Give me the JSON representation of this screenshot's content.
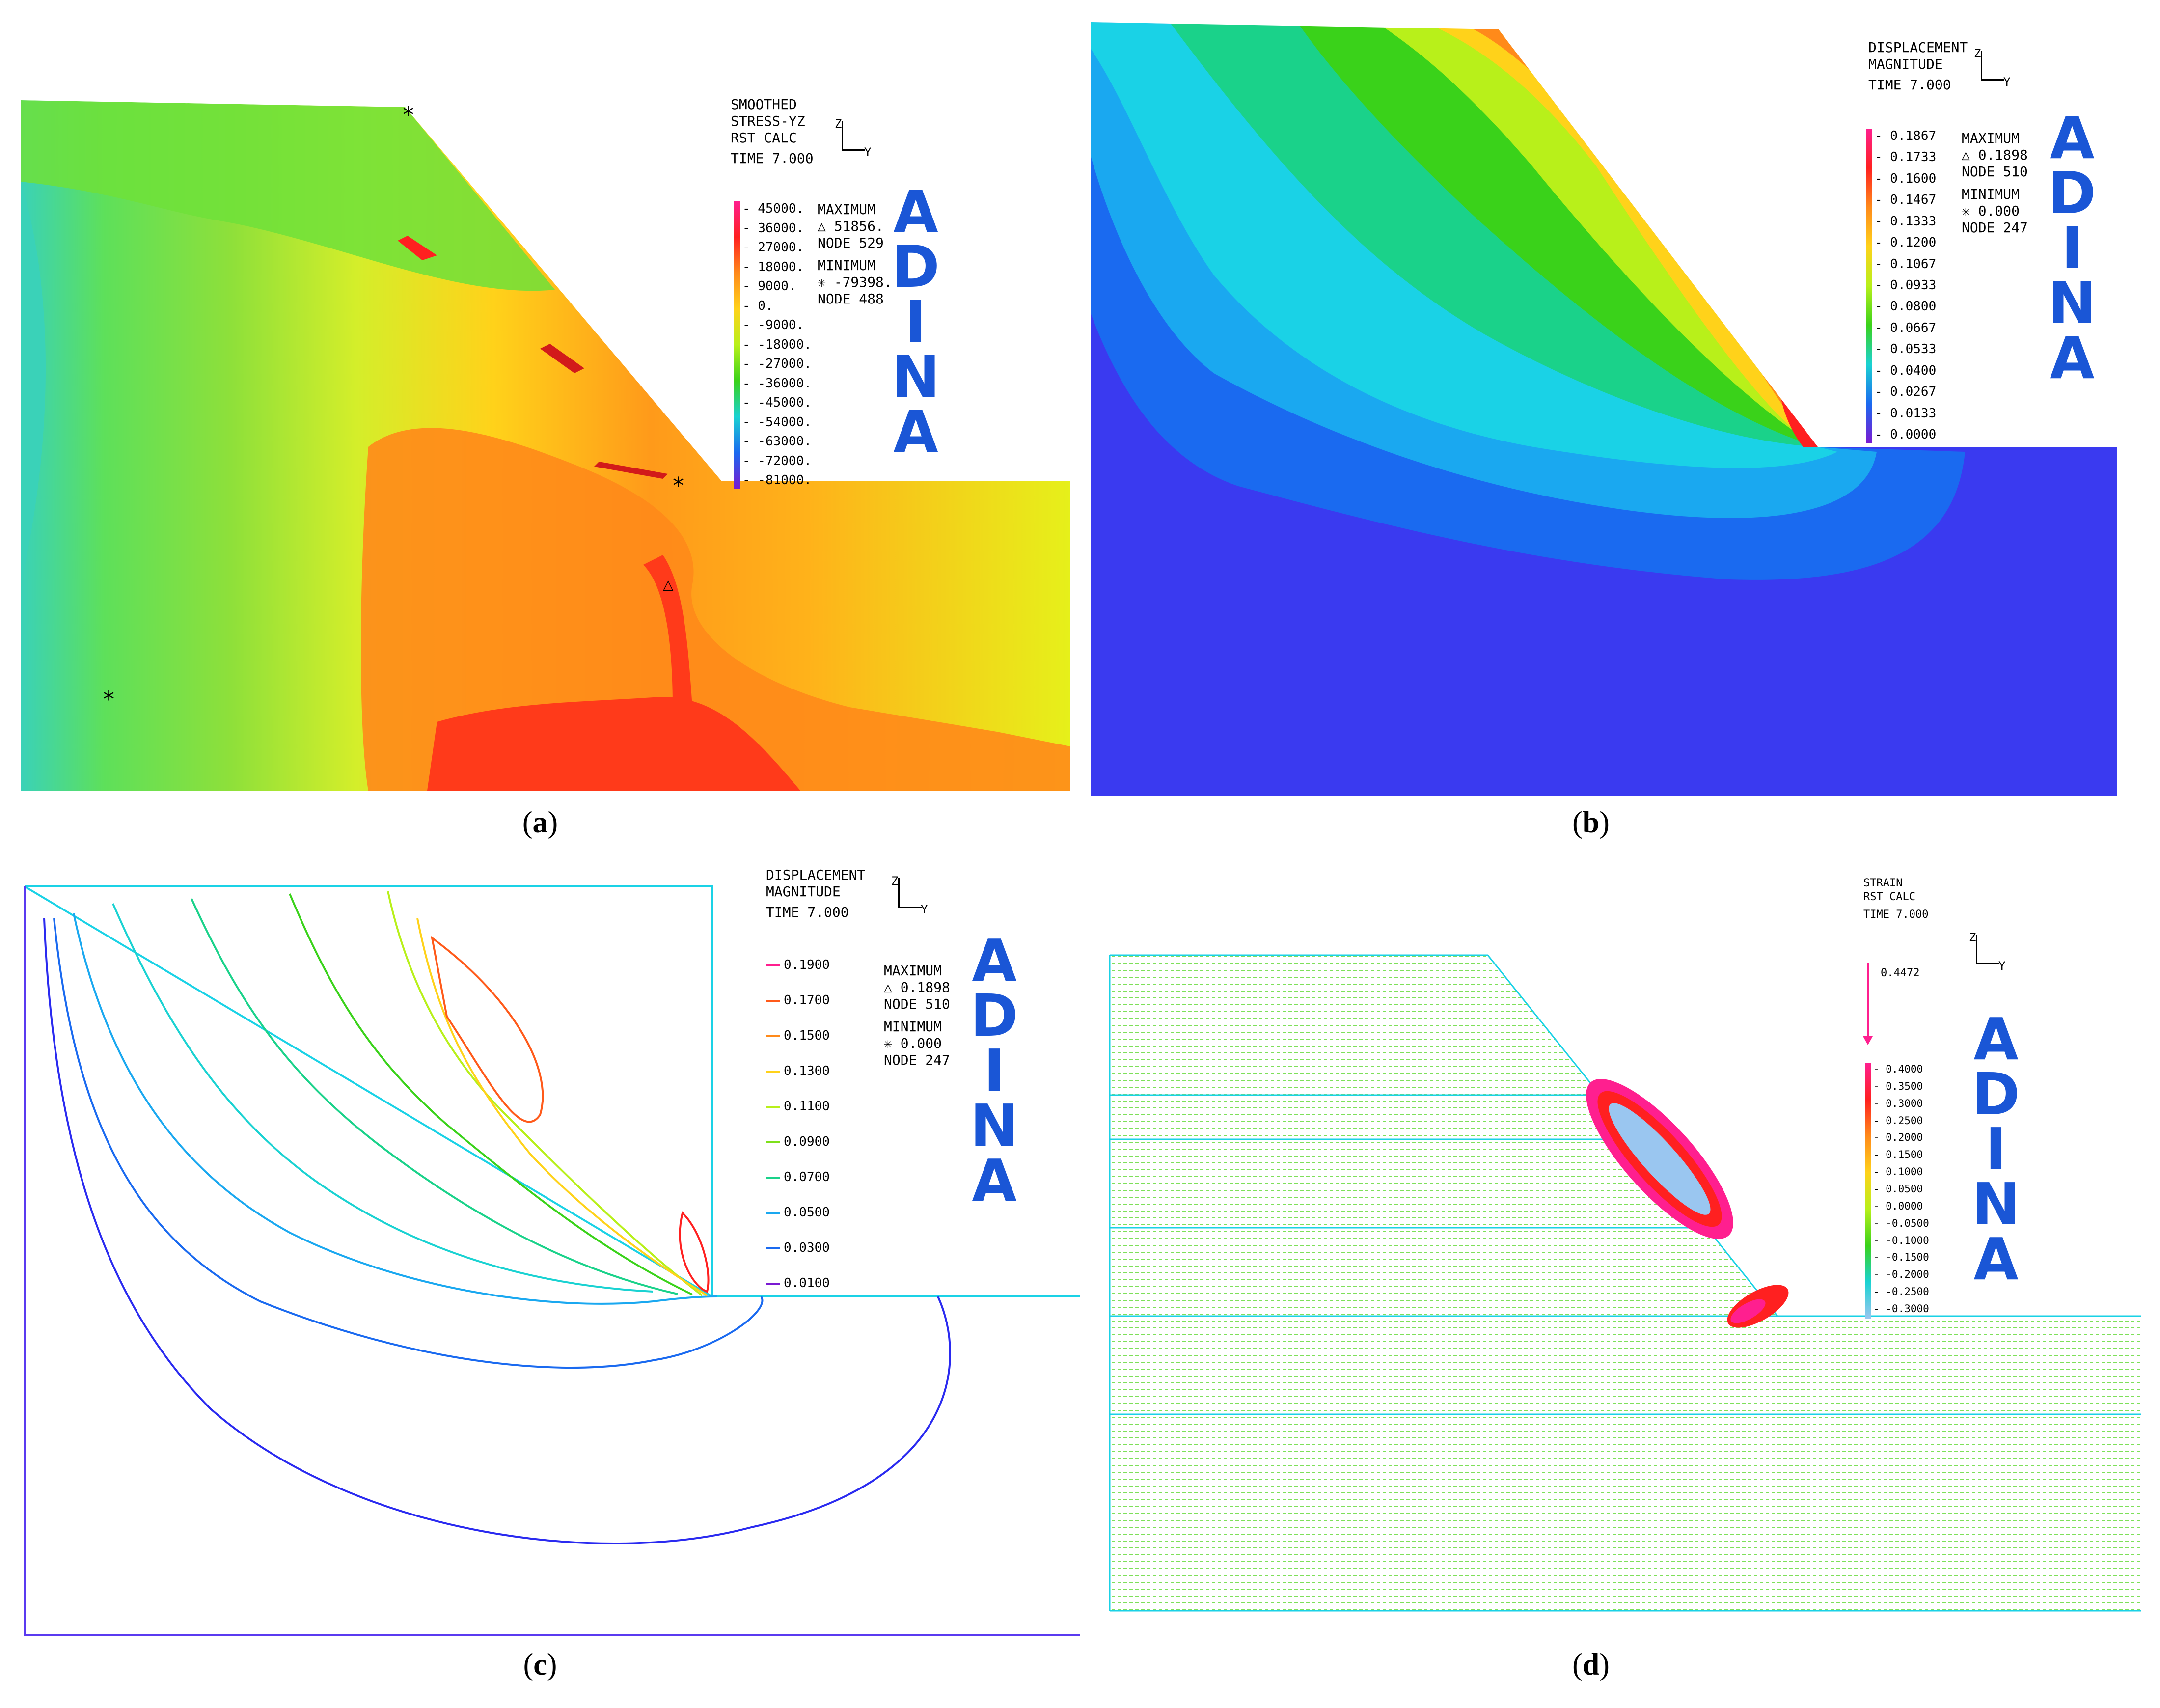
{
  "panels": {
    "a": {
      "caption_letter": "a",
      "legend_title": [
        "SMOOTHED",
        "STRESS-YZ",
        "RST CALC"
      ],
      "time": "TIME 7.000",
      "ticks": [
        "45000.",
        "36000.",
        "27000.",
        "18000.",
        "9000.",
        "0.",
        "-9000.",
        "-18000.",
        "-27000.",
        "-36000.",
        "-45000.",
        "-54000.",
        "-63000.",
        "-72000.",
        "-81000."
      ],
      "max_label": "MAXIMUM",
      "max_value": "△ 51856.",
      "max_node": "NODE 529",
      "min_label": "MINIMUM",
      "min_value": "✳ -79398.",
      "min_node": "NODE 488"
    },
    "b": {
      "caption_letter": "b",
      "legend_title": [
        "DISPLACEMENT",
        "MAGNITUDE"
      ],
      "time": "TIME 7.000",
      "ticks": [
        "0.1867",
        "0.1733",
        "0.1600",
        "0.1467",
        "0.1333",
        "0.1200",
        "0.1067",
        "0.0933",
        "0.0800",
        "0.0667",
        "0.0533",
        "0.0400",
        "0.0267",
        "0.0133",
        "0.0000"
      ],
      "max_label": "MAXIMUM",
      "max_value": "△ 0.1898",
      "max_node": "NODE 510",
      "min_label": "MINIMUM",
      "min_value": "✳ 0.000",
      "min_node": "NODE 247"
    },
    "c": {
      "caption_letter": "c",
      "legend_title": [
        "DISPLACEMENT",
        "MAGNITUDE"
      ],
      "time": "TIME 7.000",
      "ticks": [
        "0.1900",
        "0.1700",
        "0.1500",
        "0.1300",
        "0.1100",
        "0.0900",
        "0.0700",
        "0.0500",
        "0.0300",
        "0.0100"
      ],
      "max_label": "MAXIMUM",
      "max_value": "△ 0.1898",
      "max_node": "NODE 510",
      "min_label": "MINIMUM",
      "min_value": "✳ 0.000",
      "min_node": "NODE 247"
    },
    "d": {
      "caption_letter": "d",
      "legend_title": [
        "STRAIN",
        "RST CALC"
      ],
      "time": "TIME 7.000",
      "arrow_value": "0.4472",
      "ticks": [
        "0.4000",
        "0.3500",
        "0.3000",
        "0.2500",
        "0.2000",
        "0.1500",
        "0.1000",
        "0.0500",
        "0.0000",
        "-0.0500",
        "-0.1000",
        "-0.1500",
        "-0.2000",
        "-0.2500",
        "-0.3000"
      ]
    }
  },
  "axis": {
    "z": "Z",
    "y": "Y"
  },
  "brand": [
    "A",
    "D",
    "I",
    "N",
    "A"
  ],
  "colors": {
    "brand": "#1a56d6",
    "ramp": [
      "#ff1f8f",
      "#ff2020",
      "#ff5a1a",
      "#ff8a1a",
      "#ffb21a",
      "#ffd21a",
      "#e6f01a",
      "#b8f01a",
      "#7ee01a",
      "#3ad21a",
      "#1ad28a",
      "#1ad2d2",
      "#1aa8f0",
      "#1a6af0",
      "#2a2af0",
      "#7a1ad2"
    ]
  }
}
